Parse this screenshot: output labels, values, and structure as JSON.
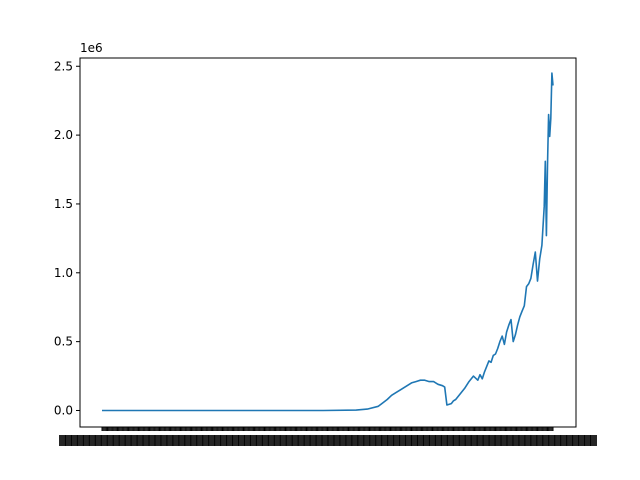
{
  "chart_data": {
    "type": "line",
    "title": "",
    "xlabel": "",
    "ylabel": "",
    "y_offset_label": "1e6",
    "y_ticks": [
      0.0,
      0.5,
      1.0,
      1.5,
      2.0,
      2.5
    ],
    "y_tick_labels": [
      "0.0",
      "0.5",
      "1.0",
      "1.5",
      "2.0",
      "2.5"
    ],
    "ylim": [
      -0.12,
      2.56
    ],
    "x_tick_labels_note": "overlapping, illegible",
    "grid": false,
    "legend": "none",
    "series": [
      {
        "color": "#1f77b4",
        "x": [
          0,
          50,
          100,
          150,
          200,
          230,
          240,
          250,
          258,
          262,
          266,
          270,
          276,
          280,
          284,
          288,
          292,
          296,
          300,
          304,
          308,
          310,
          312,
          316,
          318,
          320,
          324,
          328,
          332,
          336,
          340,
          342,
          344,
          346,
          348,
          350,
          352,
          354,
          356,
          358,
          360,
          362,
          364,
          366,
          368,
          370,
          372,
          374,
          376,
          378,
          380,
          382,
          384,
          386,
          388,
          390,
          392,
          394,
          396,
          398,
          400,
          401,
          402,
          403,
          404,
          405,
          406,
          407,
          408
        ],
        "values": [
          0.0,
          0.0,
          0.0,
          0.0,
          0.0,
          0.003,
          0.01,
          0.03,
          0.08,
          0.11,
          0.13,
          0.15,
          0.18,
          0.2,
          0.21,
          0.22,
          0.22,
          0.21,
          0.21,
          0.19,
          0.18,
          0.17,
          0.04,
          0.05,
          0.07,
          0.08,
          0.12,
          0.16,
          0.21,
          0.25,
          0.22,
          0.26,
          0.23,
          0.28,
          0.32,
          0.36,
          0.35,
          0.4,
          0.41,
          0.45,
          0.5,
          0.54,
          0.48,
          0.57,
          0.62,
          0.66,
          0.5,
          0.55,
          0.62,
          0.68,
          0.72,
          0.76,
          0.9,
          0.92,
          0.96,
          1.06,
          1.15,
          0.94,
          1.1,
          1.2,
          1.48,
          1.81,
          1.27,
          1.78,
          2.15,
          1.99,
          2.12,
          2.45,
          2.36
        ]
      }
    ]
  }
}
